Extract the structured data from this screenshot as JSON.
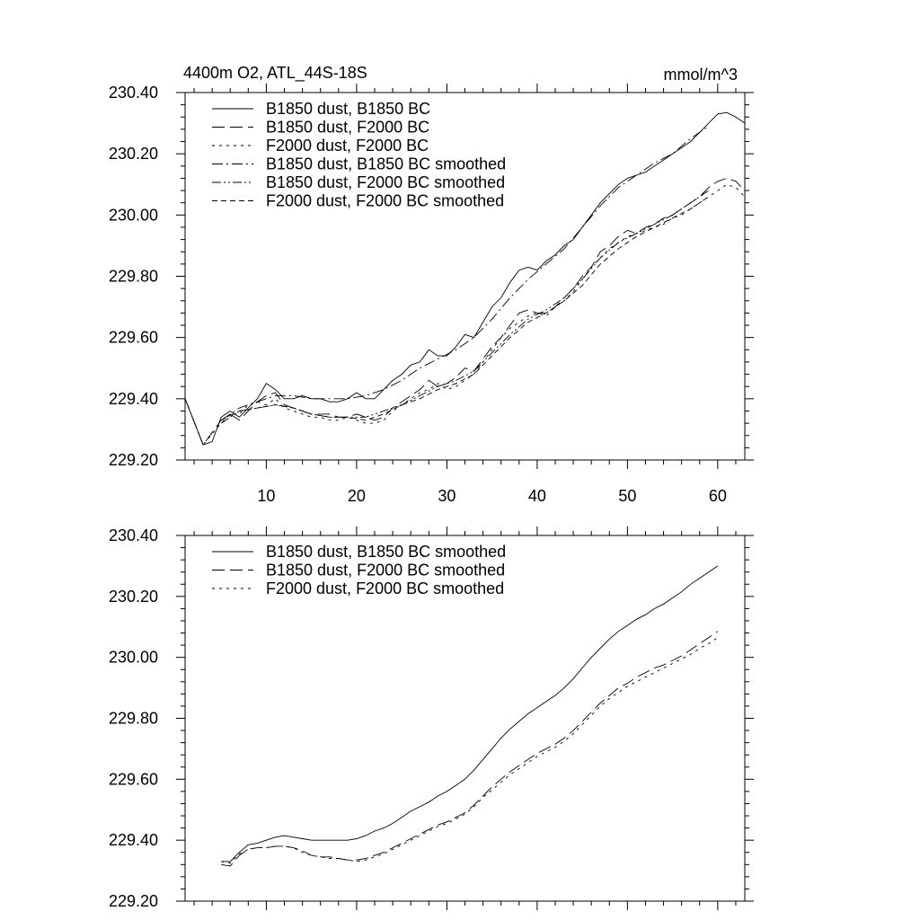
{
  "chart_data": [
    {
      "type": "line",
      "title": "4400m O2, ATL_44S-18S",
      "units": "mmol/m^3",
      "ylim": [
        229.2,
        230.4
      ],
      "xlim": [
        1,
        63
      ],
      "yticks": [
        "229.20",
        "229.40",
        "229.60",
        "229.80",
        "230.00",
        "230.20",
        "230.40"
      ],
      "xticks": [
        "10",
        "20",
        "30",
        "40",
        "50",
        "60"
      ],
      "legend_position": "top-left",
      "series": [
        {
          "name": "B1850 dust, B1850 BC",
          "dash": "solid",
          "x": [
            1,
            3,
            4,
            5,
            6,
            7,
            8,
            9,
            10,
            11,
            12,
            13,
            14,
            15,
            16,
            17,
            18,
            19,
            20,
            21,
            22,
            23,
            24,
            25,
            26,
            27,
            28,
            29,
            30,
            31,
            32,
            33,
            34,
            35,
            36,
            37,
            38,
            39,
            40,
            41,
            42,
            43,
            44,
            45,
            46,
            47,
            48,
            49,
            50,
            51,
            52,
            53,
            54,
            55,
            56,
            57,
            58,
            59,
            60,
            61,
            62,
            63
          ],
          "y": [
            229.4,
            229.25,
            229.26,
            229.34,
            229.36,
            229.34,
            229.37,
            229.4,
            229.45,
            229.43,
            229.4,
            229.4,
            229.41,
            229.4,
            229.4,
            229.39,
            229.39,
            229.4,
            229.42,
            229.4,
            229.4,
            229.43,
            229.46,
            229.48,
            229.51,
            229.52,
            229.56,
            229.54,
            229.54,
            229.57,
            229.61,
            229.6,
            229.65,
            229.7,
            229.73,
            229.78,
            229.82,
            229.83,
            229.82,
            229.85,
            229.87,
            229.9,
            229.92,
            229.96,
            230.0,
            230.04,
            230.07,
            230.1,
            230.12,
            230.13,
            230.14,
            230.16,
            230.18,
            230.2,
            230.22,
            230.24,
            230.27,
            230.3,
            230.33,
            230.335,
            230.32,
            230.3
          ]
        },
        {
          "name": "B1850 dust, F2000 BC",
          "dash": "long",
          "x": [
            1,
            3,
            5,
            6,
            7,
            8,
            9,
            10,
            11,
            12,
            13,
            14,
            15,
            16,
            17,
            18,
            19,
            20,
            21,
            22,
            23,
            24,
            25,
            26,
            27,
            28,
            29,
            30,
            31,
            32,
            33,
            34,
            35,
            36,
            37,
            38,
            39,
            40,
            41,
            42,
            43,
            44,
            45,
            46,
            47,
            48,
            49,
            50,
            51,
            52,
            53,
            54,
            55,
            56,
            57,
            58,
            59,
            60,
            61,
            62,
            63
          ],
          "y": [
            229.4,
            229.25,
            229.33,
            229.35,
            229.33,
            229.36,
            229.39,
            229.41,
            229.42,
            229.38,
            229.37,
            229.36,
            229.35,
            229.35,
            229.35,
            229.34,
            229.34,
            229.35,
            229.34,
            229.33,
            229.34,
            229.37,
            229.39,
            229.41,
            229.43,
            229.46,
            229.44,
            229.45,
            229.47,
            229.5,
            229.49,
            229.53,
            229.57,
            229.6,
            229.64,
            229.68,
            229.69,
            229.68,
            229.68,
            229.7,
            229.73,
            229.76,
            229.8,
            229.83,
            229.88,
            229.9,
            229.93,
            229.95,
            229.94,
            229.96,
            229.97,
            229.99,
            230.0,
            230.02,
            230.04,
            230.06,
            230.09,
            230.11,
            230.12,
            230.11,
            230.08
          ]
        },
        {
          "name": "F2000 dust, F2000 BC",
          "dash": "dot",
          "x": [
            1,
            3,
            5,
            6,
            7,
            8,
            9,
            10,
            11,
            12,
            13,
            14,
            15,
            16,
            17,
            18,
            19,
            20,
            21,
            22,
            23,
            24,
            25,
            26,
            27,
            28,
            29,
            30,
            31,
            32,
            33,
            34,
            35,
            36,
            37,
            38,
            39,
            40,
            41,
            42,
            43,
            44,
            45,
            46,
            47,
            48,
            49,
            50,
            51,
            52,
            53,
            54,
            55,
            56,
            57,
            58,
            59,
            60,
            61,
            62,
            63
          ],
          "y": [
            229.4,
            229.25,
            229.32,
            229.35,
            229.35,
            229.38,
            229.39,
            229.38,
            229.4,
            229.37,
            229.36,
            229.35,
            229.34,
            229.34,
            229.33,
            229.33,
            229.34,
            229.33,
            229.32,
            229.32,
            229.33,
            229.36,
            229.38,
            229.4,
            229.42,
            229.43,
            229.45,
            229.43,
            229.44,
            229.46,
            229.48,
            229.52,
            229.56,
            229.6,
            229.63,
            229.65,
            229.67,
            229.68,
            229.67,
            229.7,
            229.72,
            229.75,
            229.79,
            229.83,
            229.86,
            229.89,
            229.91,
            229.93,
            229.94,
            229.95,
            229.96,
            229.97,
            229.99,
            230.0,
            230.02,
            230.04,
            230.06,
            230.08,
            230.1,
            230.09,
            230.06
          ]
        },
        {
          "name": "B1850 dust, B1850 BC smoothed",
          "dash": "dashdot",
          "x": [
            5,
            7,
            9,
            11,
            13,
            15,
            17,
            19,
            21,
            23,
            25,
            27,
            29,
            31,
            33,
            35,
            37,
            39,
            41,
            43,
            45,
            47,
            49,
            51,
            53,
            55,
            57,
            59
          ],
          "y": [
            229.33,
            229.37,
            229.39,
            229.41,
            229.41,
            229.4,
            229.4,
            229.4,
            229.41,
            229.43,
            229.46,
            229.5,
            229.53,
            229.56,
            229.6,
            229.66,
            229.73,
            229.79,
            229.84,
            229.89,
            229.96,
            230.03,
            230.09,
            230.13,
            230.17,
            230.2,
            230.25,
            230.29
          ]
        },
        {
          "name": "B1850 dust, F2000 BC smoothed",
          "dash": "dashdotdot",
          "x": [
            5,
            7,
            9,
            11,
            13,
            15,
            17,
            19,
            21,
            23,
            25,
            27,
            29,
            31,
            33,
            35,
            37,
            39,
            41,
            43,
            45,
            47,
            49,
            51,
            53,
            55,
            57,
            59
          ],
          "y": [
            229.32,
            229.36,
            229.37,
            229.38,
            229.37,
            229.35,
            229.34,
            229.34,
            229.34,
            229.36,
            229.38,
            229.41,
            229.44,
            229.46,
            229.49,
            229.55,
            229.61,
            229.66,
            229.69,
            229.73,
            229.79,
            229.86,
            229.91,
            229.94,
            229.97,
            230.0,
            230.04,
            230.08
          ]
        },
        {
          "name": "F2000 dust, F2000 BC smoothed",
          "dash": "short",
          "x": [
            5,
            7,
            9,
            11,
            13,
            15,
            17,
            19,
            21,
            23,
            25,
            27,
            29,
            31,
            33,
            35,
            37,
            39,
            41,
            43,
            45,
            47,
            49,
            51,
            53,
            55,
            57,
            59
          ],
          "y": [
            229.33,
            229.36,
            229.37,
            229.38,
            229.37,
            229.35,
            229.34,
            229.34,
            229.33,
            229.35,
            229.38,
            229.4,
            229.43,
            229.45,
            229.48,
            229.54,
            229.6,
            229.65,
            229.68,
            229.72,
            229.77,
            229.84,
            229.89,
            229.93,
            229.96,
            229.99,
            230.02,
            230.06
          ]
        }
      ]
    },
    {
      "type": "line",
      "ylim": [
        229.2,
        230.4
      ],
      "xlim": [
        1,
        63
      ],
      "yticks": [
        "229.20",
        "229.40",
        "229.60",
        "229.80",
        "230.00",
        "230.20",
        "230.40"
      ],
      "xticks": [],
      "legend_position": "top-left",
      "series": [
        {
          "name": "B1850 dust, B1850 BC smoothed",
          "dash": "solid",
          "x": [
            5,
            6,
            7,
            8,
            9,
            10,
            11,
            12,
            13,
            14,
            15,
            16,
            17,
            18,
            19,
            20,
            21,
            22,
            23,
            24,
            25,
            26,
            27,
            28,
            29,
            30,
            31,
            32,
            33,
            34,
            35,
            36,
            37,
            38,
            39,
            40,
            41,
            42,
            43,
            44,
            45,
            46,
            47,
            48,
            49,
            50,
            51,
            52,
            53,
            54,
            55,
            56,
            57,
            58,
            59,
            60
          ],
          "y": [
            229.33,
            229.33,
            229.36,
            229.385,
            229.39,
            229.4,
            229.41,
            229.415,
            229.41,
            229.405,
            229.4,
            229.4,
            229.4,
            229.4,
            229.4,
            229.405,
            229.415,
            229.43,
            229.44,
            229.455,
            229.475,
            229.495,
            229.51,
            229.525,
            229.545,
            229.56,
            229.58,
            229.6,
            229.63,
            229.665,
            229.7,
            229.735,
            229.765,
            229.79,
            229.815,
            229.835,
            229.855,
            229.875,
            229.9,
            229.93,
            229.965,
            230.0,
            230.03,
            230.06,
            230.085,
            230.105,
            230.125,
            230.14,
            230.16,
            230.175,
            230.195,
            230.215,
            230.24,
            230.26,
            230.28,
            230.3
          ]
        },
        {
          "name": "B1850 dust, F2000 BC smoothed",
          "dash": "long",
          "x": [
            5,
            6,
            7,
            8,
            9,
            10,
            11,
            12,
            13,
            14,
            15,
            16,
            17,
            18,
            19,
            20,
            21,
            22,
            23,
            24,
            25,
            26,
            27,
            28,
            29,
            30,
            31,
            32,
            33,
            34,
            35,
            36,
            37,
            38,
            39,
            40,
            41,
            42,
            43,
            44,
            45,
            46,
            47,
            48,
            49,
            50,
            51,
            52,
            53,
            54,
            55,
            56,
            57,
            58,
            59,
            60
          ],
          "y": [
            229.32,
            229.315,
            229.35,
            229.37,
            229.375,
            229.375,
            229.38,
            229.38,
            229.375,
            229.365,
            229.35,
            229.345,
            229.345,
            229.34,
            229.335,
            229.335,
            229.34,
            229.35,
            229.36,
            229.375,
            229.39,
            229.405,
            229.42,
            229.435,
            229.45,
            229.46,
            229.475,
            229.49,
            229.515,
            229.545,
            229.575,
            229.6,
            229.625,
            229.645,
            229.665,
            229.685,
            229.7,
            229.715,
            229.735,
            229.76,
            229.79,
            229.82,
            229.85,
            229.875,
            229.9,
            229.915,
            229.935,
            229.95,
            229.965,
            229.975,
            229.99,
            230.005,
            230.025,
            230.045,
            230.065,
            230.085
          ]
        },
        {
          "name": "F2000 dust, F2000 BC smoothed",
          "dash": "dot",
          "x": [
            5,
            6,
            7,
            8,
            9,
            10,
            11,
            12,
            13,
            14,
            15,
            16,
            17,
            18,
            19,
            20,
            21,
            22,
            23,
            24,
            25,
            26,
            27,
            28,
            29,
            30,
            31,
            32,
            33,
            34,
            35,
            36,
            37,
            38,
            39,
            40,
            41,
            42,
            43,
            44,
            45,
            46,
            47,
            48,
            49,
            50,
            51,
            52,
            53,
            54,
            55,
            56,
            57,
            58,
            59,
            60
          ],
          "y": [
            229.33,
            229.325,
            229.355,
            229.37,
            229.375,
            229.375,
            229.38,
            229.38,
            229.375,
            229.36,
            229.35,
            229.345,
            229.34,
            229.34,
            229.335,
            229.33,
            229.335,
            229.345,
            229.355,
            229.37,
            229.385,
            229.4,
            229.415,
            229.43,
            229.445,
            229.455,
            229.47,
            229.485,
            229.51,
            229.54,
            229.565,
            229.59,
            229.615,
            229.635,
            229.655,
            229.675,
            229.69,
            229.705,
            229.725,
            229.75,
            229.78,
            229.81,
            229.84,
            229.865,
            229.885,
            229.905,
            229.92,
            229.935,
            229.95,
            229.965,
            229.98,
            229.995,
            230.01,
            230.03,
            230.045,
            230.065
          ]
        }
      ]
    }
  ]
}
